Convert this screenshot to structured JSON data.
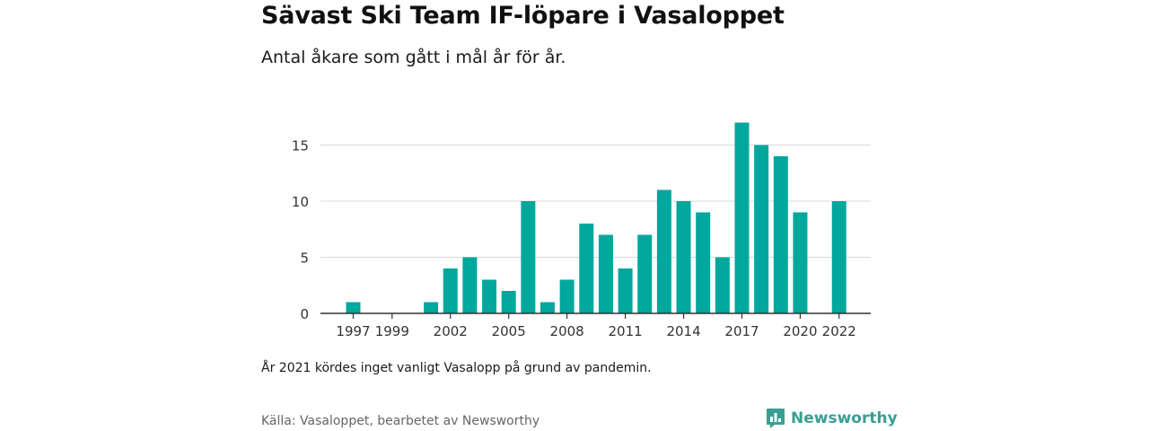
{
  "header": {
    "title": "Sävast Ski Team IF-löpare i Vasaloppet",
    "subtitle": "Antal åkare som gått i mål år för år."
  },
  "footer": {
    "note": "År 2021 kördes inget vanligt Vasalopp på grund av pandemin.",
    "source": "Källa: Vasaloppet, bearbetet av Newsworthy",
    "brand": "Newsworthy"
  },
  "colors": {
    "bar": "#00a79d",
    "grid": "#d9d9d9",
    "axis": "#333333",
    "brand": "#3a9e92"
  },
  "icons": {
    "brand_logo": "newsworthy-chart-bubble-icon"
  },
  "chart_data": {
    "type": "bar",
    "x": [
      1997,
      1998,
      1999,
      2000,
      2001,
      2002,
      2003,
      2004,
      2005,
      2006,
      2007,
      2008,
      2009,
      2010,
      2011,
      2012,
      2013,
      2014,
      2015,
      2016,
      2017,
      2018,
      2019,
      2020,
      2021,
      2022
    ],
    "values": [
      1,
      0,
      0,
      0,
      1,
      4,
      5,
      3,
      2,
      10,
      1,
      3,
      8,
      7,
      4,
      7,
      11,
      10,
      9,
      5,
      17,
      15,
      14,
      9,
      0,
      10
    ],
    "xticks": [
      "1997",
      "1999",
      "2002",
      "2005",
      "2008",
      "2011",
      "2014",
      "2017",
      "2020",
      "2022"
    ],
    "yticks": [
      "0",
      "5",
      "10",
      "15"
    ],
    "ylim": [
      0,
      18
    ],
    "grid": true,
    "legend": "none",
    "xlabel": "",
    "ylabel": ""
  }
}
